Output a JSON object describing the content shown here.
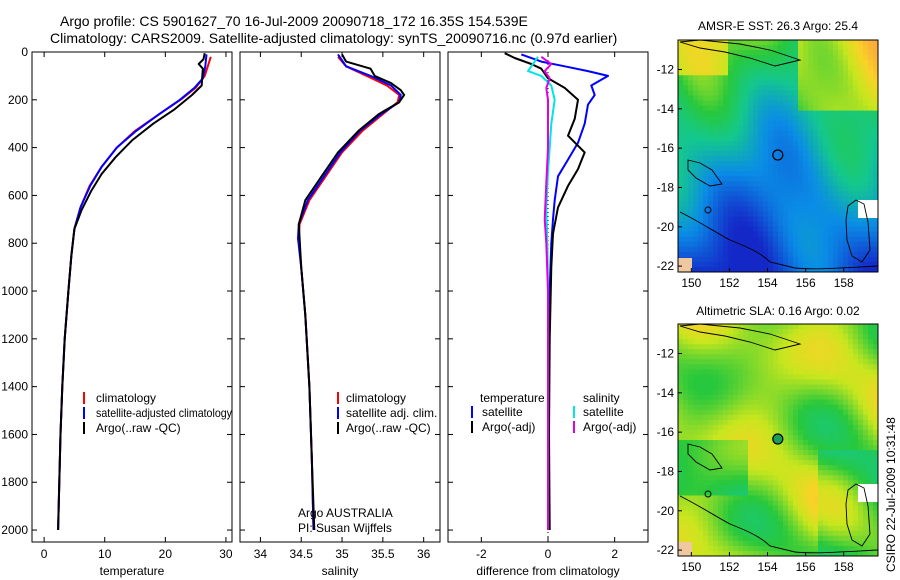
{
  "titles": {
    "line1": "Argo profile: CS 5901627_70 16-Jul-2009 20090718_172 16.35S 154.539E",
    "line2": "Climatology: CARS2009. Satellite-adjusted climatology: synTS_20090716.nc (0.97d earlier)"
  },
  "side_label": "CSIRO 22-Jul-2009 10:31:48",
  "colors": {
    "clim": "#ff0000",
    "sat": "#0000ff",
    "argo": "#000000",
    "sat_diff": "#00e5e5",
    "argo_diff": "#e000e0"
  },
  "chart_data": [
    {
      "type": "line",
      "id": "temperature",
      "xlabel": "temperature",
      "xlim": [
        -2,
        31
      ],
      "ylim": [
        2050,
        0
      ],
      "xticks": [
        "0",
        "10",
        "20",
        "30"
      ],
      "yticks": [
        "0",
        "200",
        "400",
        "600",
        "800",
        "1000",
        "1200",
        "1400",
        "1600",
        "1800",
        "2000"
      ],
      "legend": [
        "climatology",
        "satellite-adjusted climatology",
        "Argo(..raw -QC)"
      ],
      "series": [
        {
          "name": "climatology",
          "color": "#ff0000",
          "points": [
            [
              27.5,
              20
            ],
            [
              27,
              60
            ],
            [
              26.5,
              100
            ],
            [
              25,
              150
            ],
            [
              22.5,
              200
            ],
            [
              19,
              260
            ],
            [
              15,
              330
            ],
            [
              12,
              400
            ],
            [
              9.5,
              480
            ],
            [
              7.5,
              560
            ],
            [
              6,
              650
            ],
            [
              5,
              740
            ],
            [
              4.5,
              850
            ],
            [
              4,
              1000
            ],
            [
              3.4,
              1200
            ],
            [
              3,
              1400
            ],
            [
              2.7,
              1600
            ],
            [
              2.5,
              1800
            ],
            [
              2.3,
              2000
            ]
          ]
        },
        {
          "name": "satellite-adjusted climatology",
          "color": "#0000ff",
          "points": [
            [
              26.8,
              10
            ],
            [
              26.6,
              60
            ],
            [
              26.2,
              110
            ],
            [
              24.8,
              150
            ],
            [
              22.4,
              200
            ],
            [
              19,
              260
            ],
            [
              15.2,
              330
            ],
            [
              12,
              400
            ],
            [
              9.5,
              480
            ],
            [
              7.6,
              560
            ],
            [
              6,
              650
            ],
            [
              5,
              740
            ],
            [
              4.5,
              850
            ],
            [
              4,
              1000
            ],
            [
              3.4,
              1200
            ],
            [
              3,
              1400
            ],
            [
              2.7,
              1600
            ],
            [
              2.5,
              1800
            ],
            [
              2.3,
              2000
            ]
          ]
        },
        {
          "name": "Argo(..raw -QC)",
          "color": "#000000",
          "points": [
            [
              26.5,
              5
            ],
            [
              26.3,
              30
            ],
            [
              25.5,
              50
            ],
            [
              26.2,
              70
            ],
            [
              26.1,
              100
            ],
            [
              26,
              140
            ],
            [
              24.4,
              180
            ],
            [
              21.5,
              240
            ],
            [
              18,
              300
            ],
            [
              14.5,
              370
            ],
            [
              11.8,
              440
            ],
            [
              9.5,
              510
            ],
            [
              7.8,
              580
            ],
            [
              6.2,
              660
            ],
            [
              5,
              740
            ],
            [
              4.5,
              850
            ],
            [
              4,
              1000
            ],
            [
              3.4,
              1200
            ],
            [
              3,
              1400
            ],
            [
              2.7,
              1600
            ],
            [
              2.5,
              1800
            ],
            [
              2.3,
              2000
            ]
          ]
        }
      ]
    },
    {
      "type": "line",
      "id": "salinity",
      "xlabel": "salinity",
      "xlim": [
        33.75,
        36.2
      ],
      "ylim": [
        2050,
        0
      ],
      "xticks": [
        "34",
        "34.5",
        "35",
        "35.5",
        "36"
      ],
      "legend": [
        "climatology",
        "satellite adj. clim.",
        "Argo(..raw -QC)"
      ],
      "annotation": [
        "Argo AUSTRALIA",
        "PI: Susan Wijffels"
      ],
      "series": [
        {
          "name": "climatology",
          "color": "#ff0000",
          "points": [
            [
              34.95,
              20
            ],
            [
              35.05,
              60
            ],
            [
              35.3,
              100
            ],
            [
              35.55,
              140
            ],
            [
              35.7,
              180
            ],
            [
              35.68,
              210
            ],
            [
              35.5,
              260
            ],
            [
              35.25,
              330
            ],
            [
              35,
              420
            ],
            [
              34.8,
              520
            ],
            [
              34.6,
              620
            ],
            [
              34.48,
              720
            ],
            [
              34.47,
              780
            ],
            [
              34.5,
              900
            ],
            [
              34.55,
              1100
            ],
            [
              34.6,
              1400
            ],
            [
              34.63,
              1700
            ],
            [
              34.65,
              2000
            ]
          ]
        },
        {
          "name": "satellite adj. clim.",
          "color": "#0000ff",
          "points": [
            [
              34.95,
              10
            ],
            [
              35.05,
              60
            ],
            [
              35.35,
              100
            ],
            [
              35.6,
              140
            ],
            [
              35.72,
              180
            ],
            [
              35.7,
              210
            ],
            [
              35.48,
              260
            ],
            [
              35.22,
              330
            ],
            [
              34.98,
              420
            ],
            [
              34.78,
              520
            ],
            [
              34.58,
              620
            ],
            [
              34.47,
              720
            ],
            [
              34.46,
              780
            ],
            [
              34.5,
              900
            ],
            [
              34.55,
              1100
            ],
            [
              34.6,
              1400
            ],
            [
              34.63,
              1700
            ],
            [
              34.65,
              2000
            ]
          ]
        },
        {
          "name": "Argo(..raw -QC)",
          "color": "#000000",
          "points": [
            [
              35,
              10
            ],
            [
              35.05,
              40
            ],
            [
              35.35,
              70
            ],
            [
              35.4,
              100
            ],
            [
              35.6,
              130
            ],
            [
              35.72,
              160
            ],
            [
              35.76,
              180
            ],
            [
              35.7,
              210
            ],
            [
              35.45,
              260
            ],
            [
              35.2,
              330
            ],
            [
              34.95,
              420
            ],
            [
              34.75,
              520
            ],
            [
              34.55,
              620
            ],
            [
              34.47,
              720
            ],
            [
              34.48,
              780
            ],
            [
              34.5,
              900
            ],
            [
              34.55,
              1100
            ],
            [
              34.6,
              1400
            ],
            [
              34.63,
              1700
            ],
            [
              34.66,
              2000
            ]
          ]
        }
      ]
    },
    {
      "type": "line",
      "id": "difference",
      "xlabel": "difference from climatology",
      "xlim": [
        -3,
        3
      ],
      "ylim": [
        2050,
        0
      ],
      "xticks": [
        "-2",
        "0",
        "2"
      ],
      "legend_titles": [
        "temperature",
        "salinity"
      ],
      "legend": [
        "satellite",
        "Argo(-adj)",
        "satellite",
        "Argo(-adj)"
      ],
      "series": [
        {
          "name": "temperature satellite",
          "color": "#0000ff",
          "points": [
            [
              -0.8,
              10
            ],
            [
              -0.2,
              40
            ],
            [
              0.5,
              60
            ],
            [
              1.2,
              80
            ],
            [
              1.8,
              100
            ],
            [
              1.3,
              140
            ],
            [
              1.4,
              180
            ],
            [
              1.2,
              220
            ],
            [
              1.1,
              300
            ],
            [
              0.9,
              380
            ],
            [
              0.6,
              450
            ],
            [
              0.3,
              520
            ],
            [
              0.2,
              620
            ],
            [
              0.15,
              700
            ],
            [
              0.1,
              800
            ],
            [
              0.05,
              1000
            ],
            [
              0.02,
              1400
            ],
            [
              0,
              2000
            ]
          ]
        },
        {
          "name": "temperature Argo(-adj)",
          "color": "#000000",
          "points": [
            [
              -1.3,
              5
            ],
            [
              -1.0,
              25
            ],
            [
              -0.5,
              50
            ],
            [
              -0.2,
              70
            ],
            [
              0,
              110
            ],
            [
              0.5,
              150
            ],
            [
              0.9,
              200
            ],
            [
              0.8,
              280
            ],
            [
              0.6,
              350
            ],
            [
              1.1,
              420
            ],
            [
              0.9,
              490
            ],
            [
              0.6,
              560
            ],
            [
              0.3,
              650
            ],
            [
              0.15,
              760
            ],
            [
              0.1,
              900
            ],
            [
              0.05,
              1200
            ],
            [
              0.03,
              1600
            ],
            [
              0.05,
              2000
            ]
          ]
        },
        {
          "name": "salinity satellite",
          "color": "#00e5e5",
          "points": [
            [
              -0.3,
              20
            ],
            [
              -0.5,
              60
            ],
            [
              -0.6,
              80
            ],
            [
              -0.2,
              100
            ],
            [
              0.1,
              140
            ],
            [
              0.2,
              200
            ],
            [
              0.1,
              300
            ],
            [
              0.05,
              400
            ],
            [
              0,
              500
            ],
            [
              -0.05,
              650
            ],
            [
              -0.02,
              800
            ],
            [
              0,
              1000
            ],
            [
              0,
              1400
            ],
            [
              0,
              2000
            ]
          ]
        },
        {
          "name": "salinity Argo(-adj)",
          "color": "#e000e0",
          "points": [
            [
              -0.2,
              20
            ],
            [
              0.1,
              50
            ],
            [
              -0.1,
              80
            ],
            [
              0.05,
              110
            ],
            [
              -0.05,
              150
            ],
            [
              0,
              200
            ],
            [
              0,
              300
            ],
            [
              0,
              400
            ],
            [
              -0.05,
              550
            ],
            [
              -0.1,
              700
            ],
            [
              -0.05,
              800
            ],
            [
              0,
              1000
            ],
            [
              0,
              1400
            ],
            [
              0,
              2000
            ]
          ]
        }
      ]
    },
    {
      "type": "heatmap",
      "id": "sst_map",
      "title": "AMSR-E SST: 26.3 Argo: 25.4",
      "xlim": [
        149.3,
        159.8
      ],
      "ylim": [
        -22.3,
        -10.5
      ],
      "xticks": [
        "150",
        "152",
        "154",
        "156",
        "158"
      ],
      "yticks": [
        "-12",
        "-14",
        "-16",
        "-18",
        "-20",
        "-22"
      ],
      "marker": {
        "lon": 154.539,
        "lat": -16.35
      }
    },
    {
      "type": "heatmap",
      "id": "sla_map",
      "title": "Altimetric SLA: 0.16 Argo: 0.02",
      "xlim": [
        149.3,
        159.8
      ],
      "ylim": [
        -22.3,
        -10.5
      ],
      "xticks": [
        "150",
        "152",
        "154",
        "156",
        "158"
      ],
      "yticks": [
        "-12",
        "-14",
        "-16",
        "-18",
        "-20",
        "-22"
      ],
      "marker": {
        "lon": 154.539,
        "lat": -16.35
      }
    }
  ]
}
